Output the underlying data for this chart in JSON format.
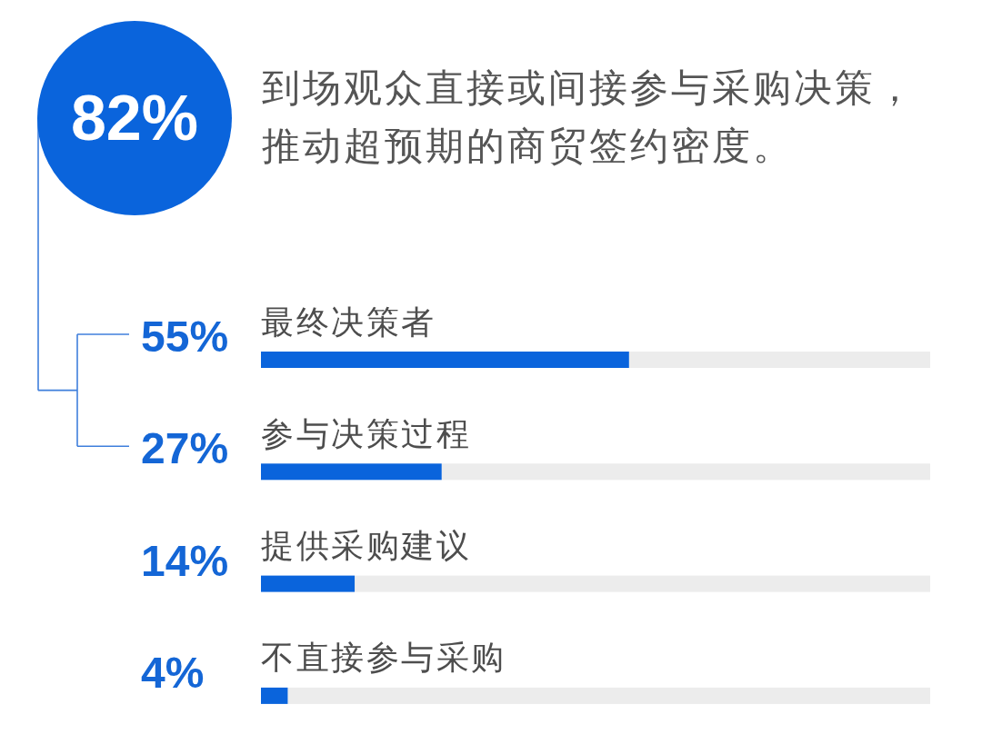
{
  "chart_data": {
    "type": "bar",
    "orientation": "horizontal",
    "title": "到场观众直接或间接参与采购决策，推动超预期的商贸签约密度。",
    "annotations": [
      "82%"
    ],
    "categories": [
      "最终决策者",
      "参与决策过程",
      "提供采购建议",
      "不直接参与采购"
    ],
    "values": [
      55,
      27,
      14,
      4
    ],
    "value_labels": [
      "55%",
      "27%",
      "14%",
      "4%"
    ],
    "color": "#0a64dc",
    "xlim": [
      0,
      100
    ],
    "tick_labels": "y"
  }
}
